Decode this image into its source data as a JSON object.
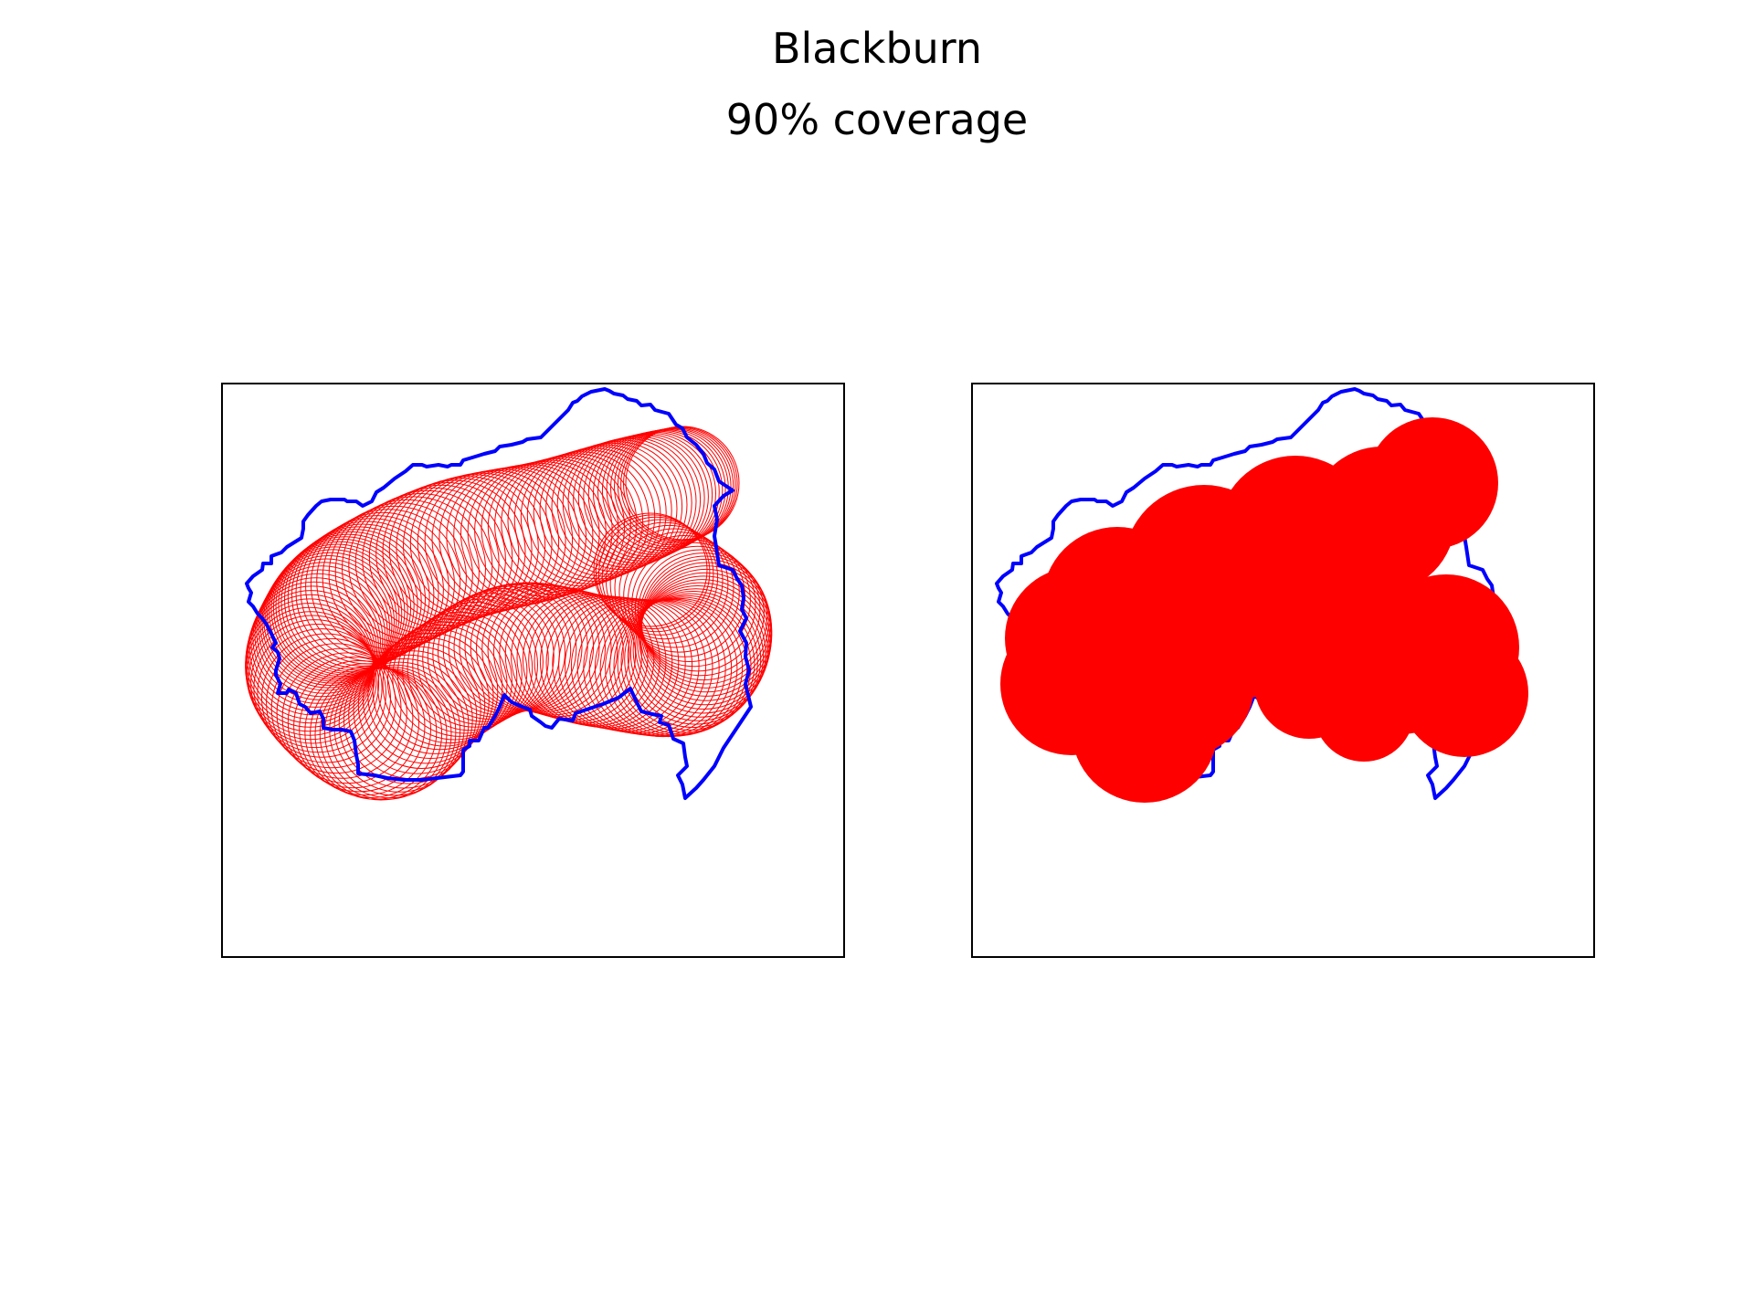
{
  "figure": {
    "title": "Blackburn",
    "subtitle": "90% coverage"
  },
  "colors": {
    "boundary": "#0000ff",
    "coverage": "#ff0000",
    "frame": "#000000",
    "background": "#ffffff"
  },
  "panels": [
    {
      "id": "left",
      "style": "circle-outlines"
    },
    {
      "id": "right",
      "style": "filled-union"
    }
  ]
}
